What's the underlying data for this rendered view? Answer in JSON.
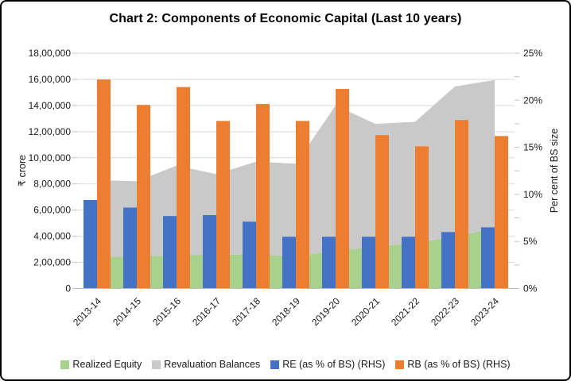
{
  "chart_data": {
    "type": "combo",
    "title": "Chart 2: Components of Economic Capital (Last 10 years)",
    "categories": [
      "2013-14",
      "2014-15",
      "2015-16",
      "2016-17",
      "2017-18",
      "2018-19",
      "2019-20",
      "2020-21",
      "2021-22",
      "2022-23",
      "2023-24"
    ],
    "series": [
      {
        "name": "Realized Equity",
        "type": "area",
        "stack": true,
        "axis": "left",
        "color": "#A9D18E",
        "values": [
          240000,
          245000,
          255000,
          260000,
          260000,
          245000,
          290000,
          320000,
          350000,
          395000,
          465000
        ]
      },
      {
        "name": "Revaluation Balances",
        "type": "area",
        "stack": true,
        "axis": "left",
        "color": "#C9C9C9",
        "values": [
          590000,
          575000,
          685000,
          615000,
          710000,
          710000,
          1110000,
          940000,
          925000,
          1150000,
          1130000
        ]
      },
      {
        "name": "RE (as % of BS) (RHS)",
        "type": "bar",
        "axis": "right",
        "color": "#4472C4",
        "values": [
          9.4,
          8.6,
          7.7,
          7.8,
          7.1,
          5.5,
          5.5,
          5.5,
          5.5,
          6.0,
          6.5
        ]
      },
      {
        "name": "RB (as % of BS) (RHS)",
        "type": "bar",
        "axis": "right",
        "color": "#ED7D31",
        "values": [
          22.2,
          19.5,
          21.4,
          17.8,
          19.6,
          17.8,
          21.2,
          16.3,
          15.1,
          17.9,
          16.2
        ]
      }
    ],
    "left_axis": {
      "title": "₹ crore",
      "min": 0,
      "max": 1800000,
      "step": 200000,
      "tick_labels": [
        "0",
        "2,00,000",
        "4,00,000",
        "6,00,000",
        "8,00,000",
        "10,00,000",
        "12,00,000",
        "14,00,000",
        "16,00,000",
        "18,00,000"
      ]
    },
    "right_axis": {
      "title": "Per cent of BS size",
      "min": 0,
      "max": 25,
      "step": 5,
      "minor_step": 2.5,
      "tick_labels": [
        "0%",
        "5%",
        "10%",
        "15%",
        "20%",
        "25%"
      ]
    },
    "legend_position": "bottom",
    "grid": true
  },
  "style": {
    "background": "#FFFFFF",
    "border_color": "#000000",
    "gridline_color": "#D9D9D9",
    "axis_line_color": "#BFBFBF",
    "tick_color": "#BFBFBF",
    "text_color": "#1a1a1a"
  }
}
